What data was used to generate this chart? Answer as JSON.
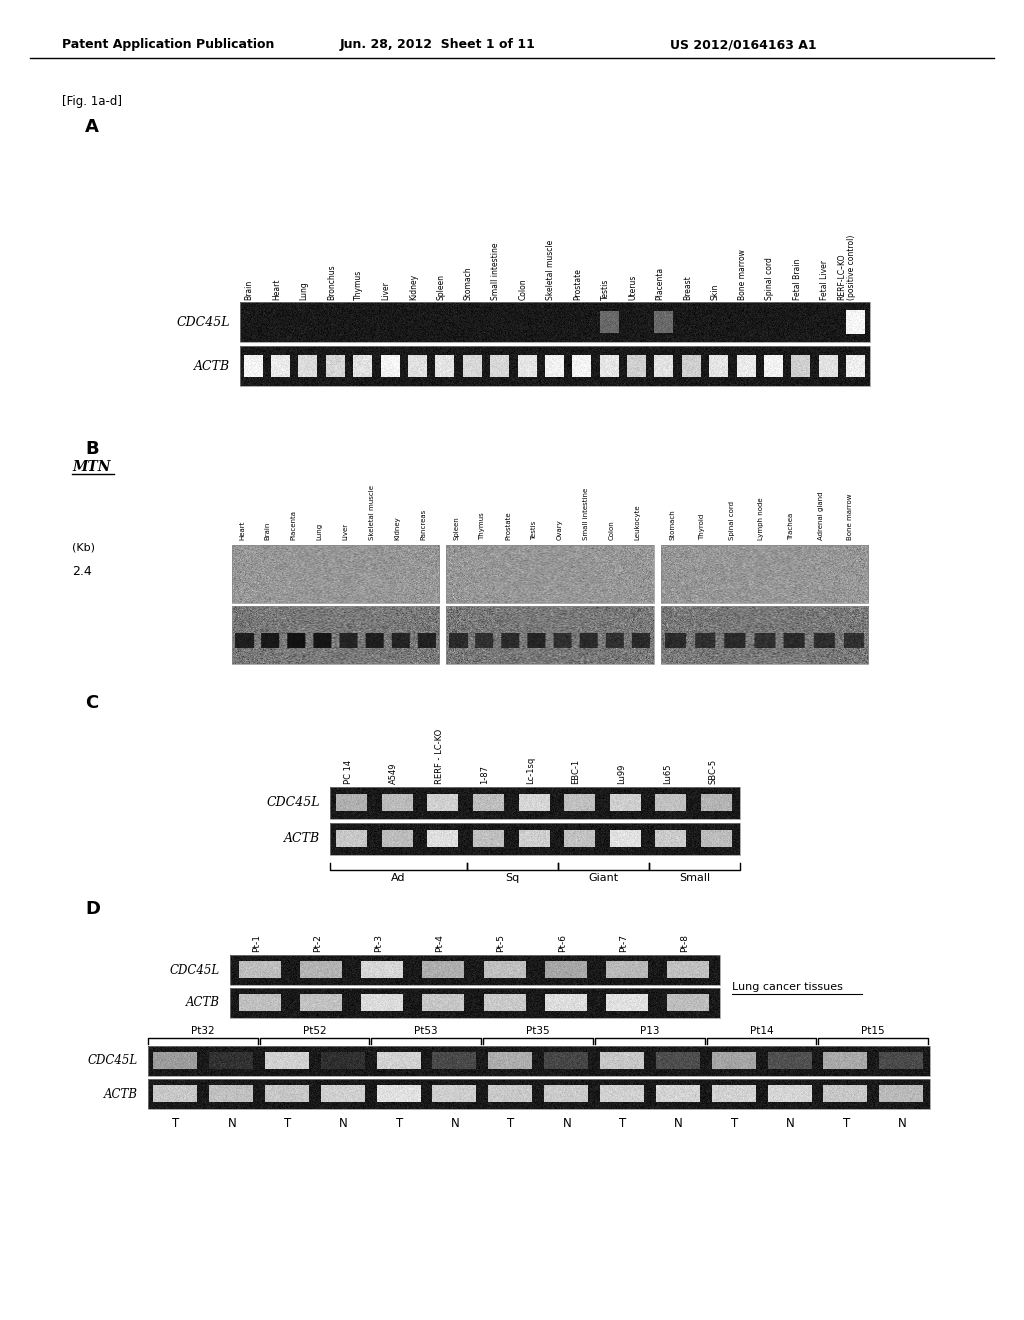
{
  "header_left": "Patent Application Publication",
  "header_center": "Jun. 28, 2012  Sheet 1 of 11",
  "header_right": "US 2012/0164163 A1",
  "fig_label": "[Fig. 1a-d]",
  "panel_A_label": "A",
  "panel_B_label": "B",
  "panel_C_label": "C",
  "panel_D_label": "D",
  "panel_A_row_labels": [
    "CDC45L",
    "ACTB"
  ],
  "panel_A_tissue_labels": [
    "Brain",
    "Heart",
    "Lung",
    "Bronchus",
    "Thymus",
    "Liver",
    "Kidney",
    "Spleen",
    "Stomach",
    "Small intestine",
    "Colon",
    "Skeletal muscle",
    "Prostate",
    "Testis",
    "Uterus",
    "Placenta",
    "Breast",
    "Skin",
    "Bone marrow",
    "Spinal cord",
    "Fetal Brain",
    "Fetal Liver",
    "RERF-LC–KO\n(positive control)"
  ],
  "panel_B_MTN_label": "MTN",
  "panel_B_Kb_label": "(Kb)",
  "panel_B_2point4": "2.4",
  "panel_B_tissue_labels": [
    "Heart",
    "Brain",
    "Placenta",
    "Lung",
    "Liver",
    "Skeletal muscle",
    "Kidney",
    "Pancreas",
    "Spleen",
    "Thymus",
    "Prostate",
    "Testis",
    "Ovary",
    "Small intestine",
    "Colon",
    "Leukocyte",
    "Stomach",
    "Thyroid",
    "Spinal cord",
    "Lymph node",
    "Trachea",
    "Adrenal gland",
    "Bone marrow"
  ],
  "panel_C_sample_labels": [
    "PC 14",
    "A549",
    "RERF - LC-KO",
    "1-87",
    "Lc-1sq",
    "EBC-1",
    "Lu99",
    "Lu65",
    "SBC-5"
  ],
  "panel_C_row_labels": [
    "CDC45L",
    "ACTB"
  ],
  "panel_C_ad_count": 3,
  "panel_C_sq_count": 2,
  "panel_C_giant_count": 2,
  "panel_C_small_count": 2,
  "panel_D_pt_labels_top": [
    "Pt-1",
    "Pt-2",
    "Pt-3",
    "Pt-4",
    "Pt-5",
    "Pt-6",
    "Pt-7",
    "Pt-8"
  ],
  "panel_D_row_labels_top": [
    "CDC45L",
    "ACTB"
  ],
  "panel_D_lung_cancer": "Lung cancer tissues",
  "panel_D_pt_labels_bottom": [
    "Pt32",
    "Pt52",
    "Pt53",
    "Pt35",
    "P13",
    "Pt14",
    "Pt15"
  ],
  "panel_D_row_labels_bottom": [
    "CDC45L",
    "ACTB"
  ],
  "panel_D_TN_labels": [
    "T",
    "N",
    "T",
    "N",
    "T",
    "N",
    "T",
    "N",
    "T",
    "N",
    "T",
    "N",
    "T",
    "N"
  ],
  "bg_color": "#ffffff",
  "text_color": "#000000"
}
